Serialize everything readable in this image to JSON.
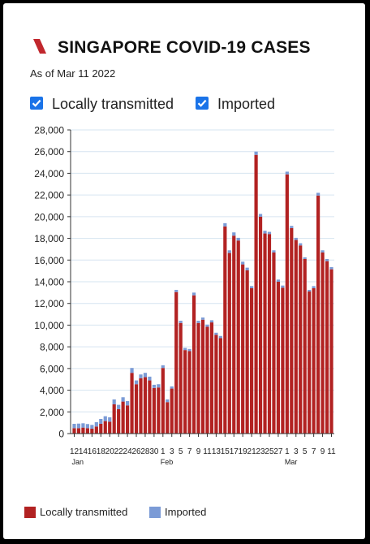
{
  "header": {
    "title": "SINGAPORE COVID-19 CASES",
    "subtitle": "As of Mar 11 2022",
    "accent_color": "#c1272d"
  },
  "filters": [
    {
      "label": "Locally transmitted",
      "checked": true
    },
    {
      "label": "Imported",
      "checked": true
    }
  ],
  "legend": [
    {
      "label": "Locally transmitted",
      "color": "#b22222"
    },
    {
      "label": "Imported",
      "color": "#7b9bd6"
    }
  ],
  "chart_data": {
    "type": "bar",
    "stacked": true,
    "ylim": [
      0,
      28000
    ],
    "yticks": [
      0,
      2000,
      4000,
      6000,
      8000,
      10000,
      12000,
      14000,
      16000,
      18000,
      20000,
      22000,
      24000,
      26000,
      28000
    ],
    "ytick_labels": [
      "0",
      "2,000",
      "4,000",
      "6,000",
      "8,000",
      "10,000",
      "12,000",
      "14,000",
      "16,000",
      "18,000",
      "20,000",
      "22,000",
      "24,000",
      "26,000",
      "28,000"
    ],
    "grid": true,
    "categories": [
      "Jan 12",
      "Jan 13",
      "Jan 14",
      "Jan 15",
      "Jan 16",
      "Jan 17",
      "Jan 18",
      "Jan 19",
      "Jan 20",
      "Jan 21",
      "Jan 22",
      "Jan 23",
      "Jan 24",
      "Jan 25",
      "Jan 26",
      "Jan 27",
      "Jan 28",
      "Jan 29",
      "Jan 30",
      "Jan 31",
      "Feb 1",
      "Feb 2",
      "Feb 3",
      "Feb 4",
      "Feb 5",
      "Feb 6",
      "Feb 7",
      "Feb 8",
      "Feb 9",
      "Feb 10",
      "Feb 11",
      "Feb 12",
      "Feb 13",
      "Feb 14",
      "Feb 15",
      "Feb 16",
      "Feb 17",
      "Feb 18",
      "Feb 19",
      "Feb 20",
      "Feb 21",
      "Feb 22",
      "Feb 23",
      "Feb 24",
      "Feb 25",
      "Feb 26",
      "Feb 27",
      "Feb 28",
      "Mar 1",
      "Mar 2",
      "Mar 3",
      "Mar 4",
      "Mar 5",
      "Mar 6",
      "Mar 7",
      "Mar 8",
      "Mar 9",
      "Mar 10",
      "Mar 11"
    ],
    "tick_labels": [
      "12",
      "",
      "14",
      "",
      "16",
      "",
      "18",
      "",
      "20",
      "",
      "22",
      "",
      "24",
      "",
      "26",
      "",
      "28",
      "",
      "30",
      "",
      "1",
      "",
      "3",
      "",
      "5",
      "",
      "7",
      "",
      "9",
      "",
      "11",
      "",
      "13",
      "",
      "15",
      "",
      "17",
      "",
      "19",
      "",
      "21",
      "",
      "23",
      "",
      "25",
      "",
      "27",
      "",
      "1",
      "",
      "3",
      "",
      "5",
      "",
      "7",
      "",
      "9",
      "",
      "11"
    ],
    "month_labels": [
      {
        "index": 0,
        "label": "Jan"
      },
      {
        "index": 20,
        "label": "Feb"
      },
      {
        "index": 48,
        "label": "Mar"
      }
    ],
    "series": [
      {
        "name": "Locally transmitted",
        "color": "#b22222",
        "values": [
          500,
          500,
          550,
          500,
          450,
          650,
          900,
          1150,
          1100,
          2700,
          2250,
          2950,
          2600,
          5600,
          4550,
          5100,
          5200,
          4900,
          4200,
          4250,
          6050,
          2900,
          4150,
          13050,
          10200,
          7700,
          7600,
          12750,
          10200,
          10500,
          9850,
          10250,
          9100,
          8800,
          19100,
          16650,
          18250,
          17800,
          15600,
          15050,
          13400,
          25700,
          20000,
          18450,
          18400,
          16700,
          14000,
          13450,
          23900,
          18950,
          17850,
          17350,
          16100,
          13100,
          13400,
          21950,
          16700,
          15900,
          15150
        ]
      },
      {
        "name": "Imported",
        "color": "#7b9bd6",
        "values": [
          400,
          420,
          400,
          380,
          350,
          400,
          450,
          450,
          400,
          450,
          400,
          400,
          400,
          450,
          350,
          350,
          400,
          350,
          300,
          300,
          250,
          250,
          200,
          200,
          200,
          200,
          200,
          250,
          200,
          200,
          200,
          200,
          200,
          200,
          300,
          250,
          300,
          250,
          250,
          250,
          200,
          300,
          250,
          250,
          200,
          200,
          200,
          200,
          250,
          200,
          200,
          200,
          150,
          150,
          200,
          250,
          200,
          200,
          200
        ]
      }
    ]
  }
}
